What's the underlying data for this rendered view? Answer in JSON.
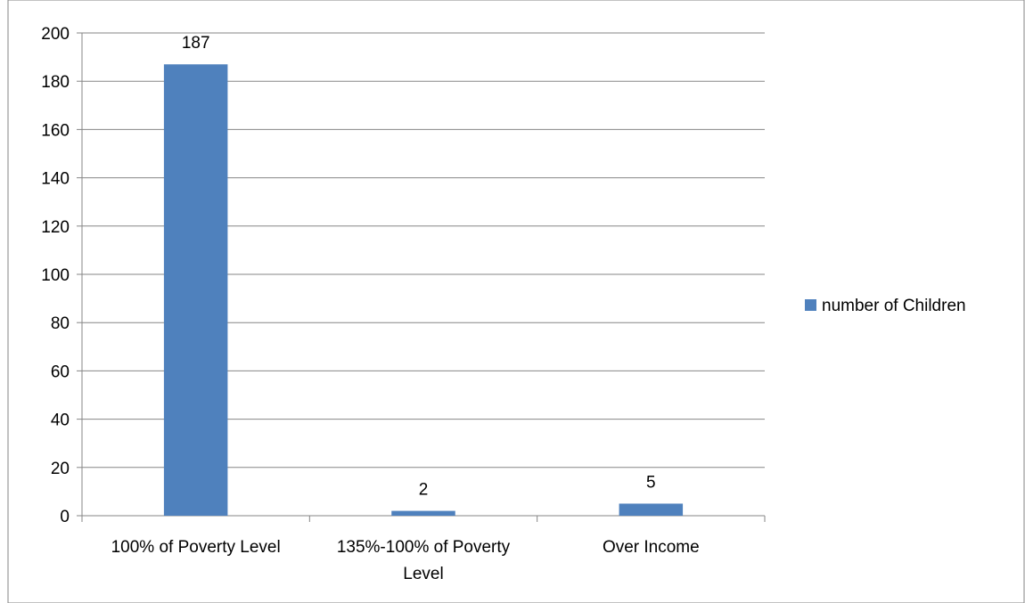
{
  "chart_data": {
    "type": "bar",
    "title": "",
    "xlabel": "",
    "ylabel": "",
    "categories": [
      [
        "100% of Poverty Level"
      ],
      [
        "135%-100% of Poverty",
        "Level"
      ],
      [
        "Over Income"
      ]
    ],
    "series": [
      {
        "name": "number of Children",
        "values": [
          187,
          2,
          5
        ],
        "color": "#4F81BD"
      }
    ],
    "ylim": [
      0,
      200
    ],
    "yticks": [
      0,
      20,
      40,
      60,
      80,
      100,
      120,
      140,
      160,
      180,
      200
    ],
    "grid": true,
    "legend_position": "right",
    "data_labels": true
  }
}
